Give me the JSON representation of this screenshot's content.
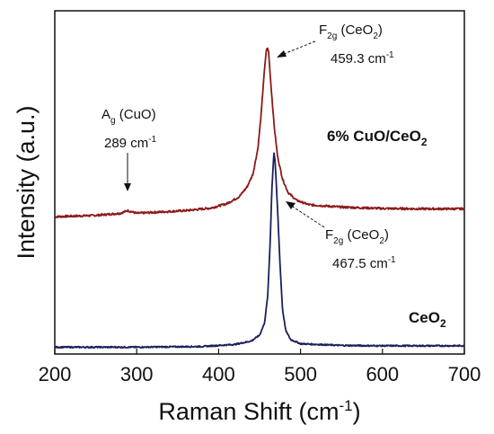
{
  "chart_data": {
    "type": "line",
    "xlabel": {
      "main": "Raman Shift (cm",
      "sup": "-1",
      "close": ")"
    },
    "ylabel": "Intensity (a.u.)",
    "xlim": [
      200,
      700
    ],
    "x_ticks": [
      "200",
      "300",
      "400",
      "500",
      "600",
      "700"
    ],
    "y_ticks": [],
    "grid": false,
    "colors": {
      "cuo_ceo2": "#8b1a1a",
      "ceo2": "#1c1f5c",
      "axis": "#111111"
    },
    "series": [
      {
        "key": "cuo_ceo2",
        "label_parts": {
          "pre": "6% CuO/CeO",
          "sub": "2"
        },
        "baseline": 0.4,
        "noise": 0.003,
        "points": [
          [
            200,
            0.4
          ],
          [
            250,
            0.404
          ],
          [
            280,
            0.41
          ],
          [
            289,
            0.418
          ],
          [
            300,
            0.41
          ],
          [
            330,
            0.414
          ],
          [
            360,
            0.418
          ],
          [
            390,
            0.425
          ],
          [
            410,
            0.438
          ],
          [
            425,
            0.458
          ],
          [
            435,
            0.488
          ],
          [
            442,
            0.525
          ],
          [
            448,
            0.6
          ],
          [
            452,
            0.7
          ],
          [
            455,
            0.8
          ],
          [
            458,
            0.88
          ],
          [
            459.3,
            0.893
          ],
          [
            461,
            0.88
          ],
          [
            464,
            0.78
          ],
          [
            468,
            0.66
          ],
          [
            472,
            0.575
          ],
          [
            478,
            0.51
          ],
          [
            485,
            0.47
          ],
          [
            495,
            0.448
          ],
          [
            510,
            0.435
          ],
          [
            550,
            0.428
          ],
          [
            600,
            0.424
          ],
          [
            650,
            0.423
          ],
          [
            700,
            0.423
          ]
        ]
      },
      {
        "key": "ceo2",
        "label_parts": {
          "pre": "CeO",
          "sub": "2"
        },
        "baseline": 0.02,
        "noise": 0.002,
        "points": [
          [
            200,
            0.02
          ],
          [
            300,
            0.02
          ],
          [
            380,
            0.022
          ],
          [
            420,
            0.028
          ],
          [
            440,
            0.038
          ],
          [
            450,
            0.055
          ],
          [
            456,
            0.09
          ],
          [
            460,
            0.17
          ],
          [
            463,
            0.33
          ],
          [
            465,
            0.48
          ],
          [
            467.5,
            0.588
          ],
          [
            469,
            0.56
          ],
          [
            472,
            0.42
          ],
          [
            475,
            0.26
          ],
          [
            478,
            0.13
          ],
          [
            482,
            0.068
          ],
          [
            488,
            0.042
          ],
          [
            500,
            0.03
          ],
          [
            550,
            0.025
          ],
          [
            600,
            0.024
          ],
          [
            700,
            0.024
          ]
        ]
      }
    ],
    "annotations": [
      {
        "key": "ag",
        "title_main": "A",
        "title_sub": "g",
        "title_rest": " (CuO)",
        "value": "289 cm",
        "value_sup": "-1"
      },
      {
        "key": "f2g1",
        "title_main": "F",
        "title_sub": "2g",
        "title_rest": " (CeO",
        "title_sub2": "2",
        "title_end": ")",
        "value": "459.3 cm",
        "value_sup": "-1"
      },
      {
        "key": "f2g2",
        "title_main": "F",
        "title_sub": "2g",
        "title_rest": " (CeO",
        "title_sub2": "2",
        "title_end": ")",
        "value": "467.5 cm",
        "value_sup": "-1"
      }
    ]
  }
}
